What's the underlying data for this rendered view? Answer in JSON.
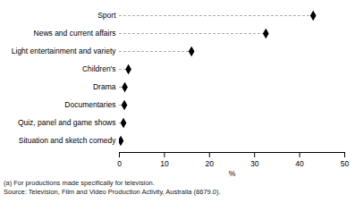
{
  "chart_data": {
    "type": "dot",
    "orientation": "horizontal",
    "categories": [
      "Sport",
      "News and current affairs",
      "Light entertainment and variety",
      "Children's",
      "Drama",
      "Documentaries",
      "Quiz, panel and game shows",
      "Situation and sketch comedy"
    ],
    "values": [
      43,
      32.5,
      16,
      2,
      1.2,
      1.1,
      0.9,
      0.3
    ],
    "color": "#000000",
    "marker": "diamond",
    "line_style": "dashed",
    "x_label": "%",
    "xlim": [
      0,
      50
    ],
    "xticks": [
      0,
      10,
      20,
      30,
      40,
      50
    ],
    "grid": false,
    "annotations": [
      "(a) For productions made specifically for television.",
      "Source: Television, Film and Video Production Activity, Australia (8679.0)."
    ]
  }
}
